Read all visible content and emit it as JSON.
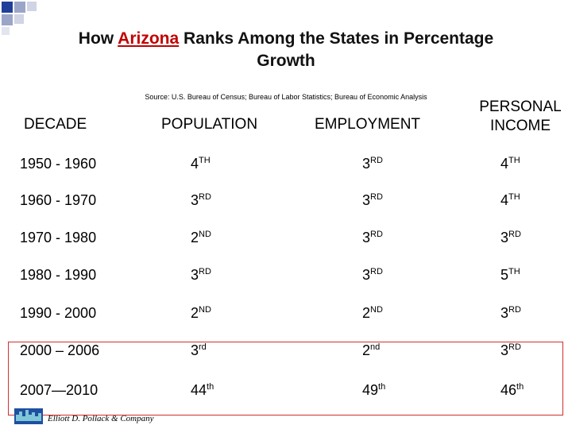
{
  "title": {
    "before": "How",
    "highlight": "Arizona",
    "after": "Ranks Among the States in Percentage",
    "line2": "Growth"
  },
  "source": "Source: U.S. Bureau of Census; Bureau of Labor Statistics; Bureau of Economic Analysis",
  "table": {
    "headers": [
      "DECADE",
      "POPULATION",
      "EMPLOYMENT",
      [
        "PERSONAL",
        "INCOME"
      ]
    ],
    "rows": [
      {
        "decade": "1950 - 1960",
        "ranks": [
          [
            "4",
            "TH"
          ],
          [
            "3",
            "RD"
          ],
          [
            "4",
            "TH"
          ]
        ]
      },
      {
        "decade": "1960 - 1970",
        "ranks": [
          [
            "3",
            "RD"
          ],
          [
            "3",
            "RD"
          ],
          [
            "4",
            "TH"
          ]
        ]
      },
      {
        "decade": "1970 - 1980",
        "ranks": [
          [
            "2",
            "ND"
          ],
          [
            "3",
            "RD"
          ],
          [
            "3",
            "RD"
          ]
        ]
      },
      {
        "decade": "1980 - 1990",
        "ranks": [
          [
            "3",
            "RD"
          ],
          [
            "3",
            "RD"
          ],
          [
            "5",
            "TH"
          ]
        ]
      },
      {
        "decade": "1990 - 2000",
        "ranks": [
          [
            "2",
            "ND"
          ],
          [
            "2",
            "ND"
          ],
          [
            "3",
            "RD"
          ]
        ]
      },
      {
        "decade": "2000 – 2006",
        "ranks": [
          [
            "3",
            "rd"
          ],
          [
            "2",
            "nd"
          ],
          [
            "3",
            "RD"
          ]
        ]
      },
      {
        "decade": "2007—2010",
        "ranks": [
          [
            "44",
            "th"
          ],
          [
            "49",
            "th"
          ],
          [
            "46",
            "th"
          ]
        ]
      }
    ]
  },
  "footer": "Elliott D. Pollack & Company"
}
